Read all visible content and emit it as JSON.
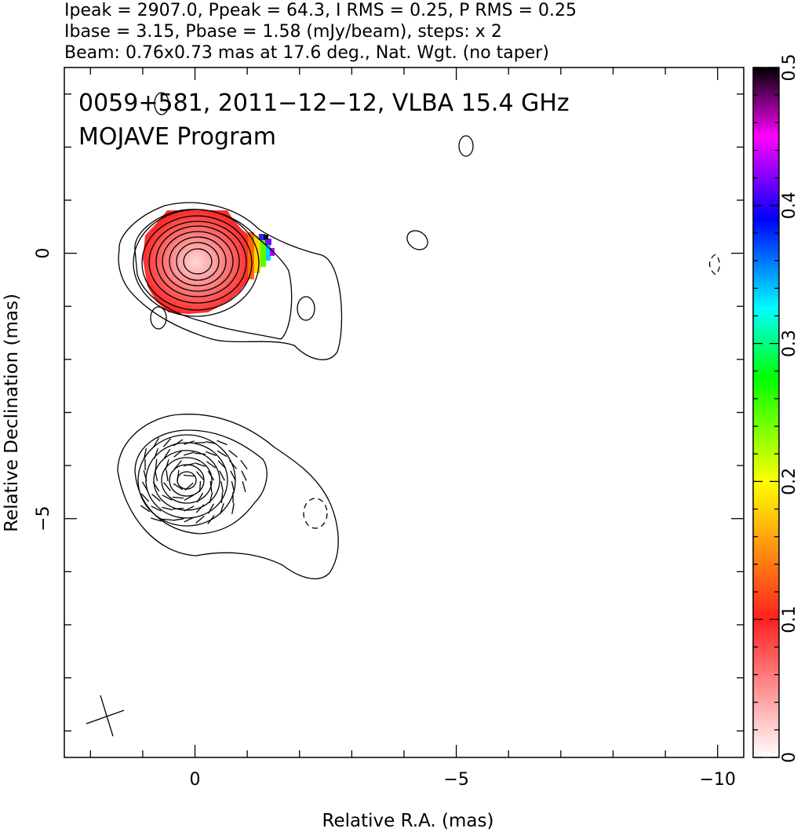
{
  "header": {
    "line1": "Ipeak = 2907.0, Ppeak = 64.3, I RMS = 0.25, P RMS = 0.25",
    "line2": "Ibase = 3.15, Pbase = 1.58 (mJy/beam), steps: x 2",
    "line3": "Beam: 0.76x0.73 mas at 17.6 deg., Nat. Wgt. (no taper)"
  },
  "plot_title": {
    "line1": "0059+581, 2011−12−12, VLBA 15.4 GHz",
    "line2": "MOJAVE Program"
  },
  "chart_data": {
    "type": "heatmap",
    "xlabel": "Relative R.A. (mas)",
    "ylabel": "Relative Declination (mas)",
    "xlim": [
      2.5,
      -10.5
    ],
    "ylim": [
      -9.5,
      3.5
    ],
    "x_major_ticks": [
      0,
      -5,
      -10
    ],
    "x_tick_labels": [
      "0",
      "−5",
      "−10"
    ],
    "y_major_ticks": [
      0,
      -5
    ],
    "y_tick_labels": [
      "0",
      "−5"
    ],
    "colorbar": {
      "range": [
        0,
        0.5
      ],
      "tick_values": [
        0,
        0.1,
        0.2,
        0.3,
        0.4,
        0.5
      ],
      "tick_labels": [
        "0",
        "0.1",
        "0.2",
        "0.3",
        "0.4",
        "0.5"
      ],
      "colors": [
        "#ffffff",
        "#ff2020",
        "#ffff00",
        "#00ff00",
        "#00ffff",
        "#0000ff",
        "#ff00ff",
        "#000000"
      ]
    },
    "total_intensity_peak_mJy_per_beam": 2907.0,
    "polarized_intensity_peak_mJy_per_beam": 64.3,
    "contour_base_mJy_per_beam": 3.15,
    "contour_step_factor": 2,
    "beam": {
      "major_mas": 0.76,
      "minor_mas": 0.73,
      "pa_deg": 17.6
    },
    "panels": [
      {
        "name": "fractional polarization with total intensity contours",
        "dec_offset_mas": 0
      },
      {
        "name": "polarization vectors with total intensity contours",
        "dec_offset_mas": -4
      }
    ]
  }
}
